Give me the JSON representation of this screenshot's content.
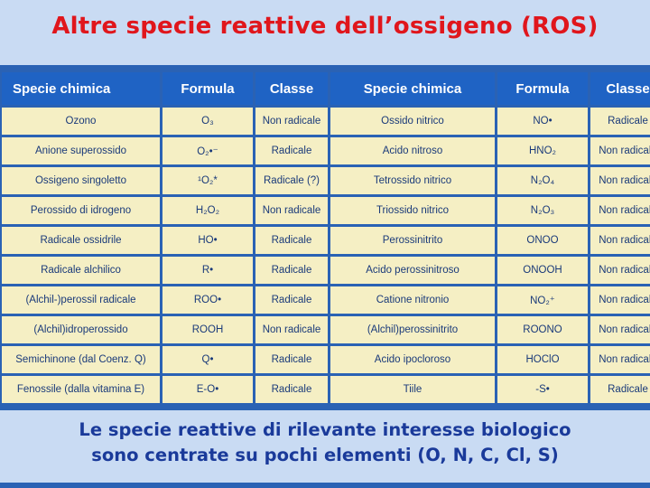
{
  "title": "Altre specie reattive dell’ossigeno (ROS)",
  "table": {
    "headers": [
      "Specie chimica",
      "Formula",
      "Classe",
      "Specie chimica",
      "Formula",
      "Classe"
    ],
    "rows": [
      [
        "Ozono",
        "O₃",
        "Non radicale",
        "Ossido nitrico",
        "NO•",
        "Radicale"
      ],
      [
        "Anione superossido",
        "O₂•⁻",
        "Radicale",
        "Acido nitroso",
        "HNO₂",
        "Non radicale"
      ],
      [
        "Ossigeno singoletto",
        "¹O₂*",
        "Radicale (?)",
        "Tetrossido nitrico",
        "N₂O₄",
        "Non radicale"
      ],
      [
        "Perossido di idrogeno",
        "H₂O₂",
        "Non radicale",
        "Triossido nitrico",
        "N₂O₃",
        "Non radicale"
      ],
      [
        "Radicale ossidrile",
        "HO•",
        "Radicale",
        "Perossinitrito",
        "ONOO",
        "Non radicale"
      ],
      [
        "Radicale alchilico",
        "R•",
        "Radicale",
        "Acido perossinitroso",
        "ONOOH",
        "Non radicale"
      ],
      [
        "(Alchil-)perossil radicale",
        "ROO•",
        "Radicale",
        "Catione nitronio",
        "NO₂⁺",
        "Non radicale"
      ],
      [
        "(Alchil)idroperossido",
        "ROOH",
        "Non radicale",
        "(Alchil)perossinitrito",
        "ROONO",
        "Non radicale"
      ],
      [
        "Semichinone (dal Coenz. Q)",
        "Q•",
        "Radicale",
        "Acido ipocloroso",
        "HOClO",
        "Non radicale"
      ],
      [
        "Fenossile  (dalla vitamina E)",
        "E-O•",
        "Radicale",
        "Tiile",
        "-S•",
        "Radicale"
      ]
    ]
  },
  "footer": {
    "line1": "Le specie reattive di rilevante interesse biologico",
    "line2": "sono centrate su pochi elementi (O, N, C, Cl, S)"
  }
}
